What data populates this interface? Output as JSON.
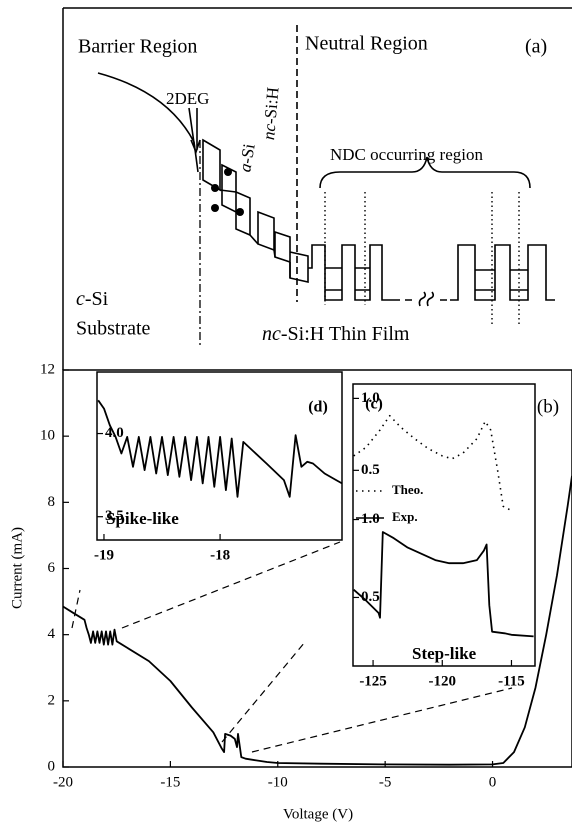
{
  "diagram": {
    "panel_label": "(a)",
    "barrier_region": "Barrier Region",
    "neutral_region": "Neutral Region",
    "twodeg": "2DEG",
    "a_si": {
      "prefix": "a",
      "rest": "-Si"
    },
    "nc_si_h": {
      "prefix": "nc",
      "rest": "-Si:H"
    },
    "ndc_region": "NDC occurring region",
    "c_si": {
      "prefix": "c",
      "rest": "-Si"
    },
    "substrate": "Substrate",
    "thin_film": {
      "prefix": "nc",
      "rest": "-Si:H Thin Film"
    }
  },
  "chart_data": [
    {
      "type": "line",
      "panel_label": "(b)",
      "x_label": "Voltage (V)",
      "y_label": "Current (mA)",
      "color": "#000000",
      "x": [
        -20,
        -19.5,
        -19,
        -18.9,
        -18.8,
        -18.7,
        -18.6,
        -18.5,
        -18.4,
        -18.3,
        -18.2,
        -18.1,
        -18,
        -17.9,
        -17.8,
        -17.7,
        -17.6,
        -17.5,
        -17,
        -16,
        -15,
        -14,
        -13,
        -12.6,
        -12.5,
        -12.45,
        -12.2,
        -12,
        -11.9,
        -11.85,
        -11.7,
        -11.5,
        -11,
        -10.5,
        -10,
        -8,
        -5,
        -2,
        0,
        0.5,
        1,
        1.5,
        2,
        2.5,
        3,
        3.5,
        3.7
      ],
      "values": [
        4.85,
        4.65,
        4.45,
        4.2,
        4.0,
        3.75,
        4.1,
        3.75,
        4.1,
        3.75,
        4.1,
        3.7,
        4.1,
        3.7,
        4.1,
        3.7,
        4.15,
        3.8,
        3.6,
        3.2,
        2.6,
        1.8,
        1.05,
        0.55,
        0.45,
        1.0,
        0.95,
        0.85,
        0.6,
        1.0,
        0.3,
        0.25,
        0.2,
        0.15,
        0.12,
        0.1,
        0.08,
        0.07,
        0.08,
        0.12,
        0.45,
        1.2,
        2.4,
        4.0,
        5.8,
        7.9,
        8.8
      ],
      "xlim": [
        -20,
        3.7
      ],
      "xticks": [
        -20,
        -15,
        -10,
        -5,
        0
      ],
      "ylim": [
        0,
        12
      ],
      "yticks": [
        0,
        2,
        4,
        6,
        8,
        10,
        12
      ]
    },
    {
      "type": "line",
      "panel_label": "(d)",
      "annotation": "Spike-like",
      "color": "#000000",
      "x": [
        -19.05,
        -19,
        -18.95,
        -18.9,
        -18.85,
        -18.8,
        -18.75,
        -18.7,
        -18.65,
        -18.6,
        -18.55,
        -18.5,
        -18.45,
        -18.4,
        -18.35,
        -18.3,
        -18.25,
        -18.2,
        -18.15,
        -18.1,
        -18.05,
        -18,
        -17.95,
        -17.9,
        -17.85,
        -17.8,
        -17.6,
        -17.45,
        -17.4,
        -17.35,
        -17.3,
        -17.25,
        -17.2,
        -17.1,
        -17,
        -16.95
      ],
      "values": [
        4.2,
        4.15,
        4.05,
        3.98,
        3.88,
        3.98,
        3.8,
        3.98,
        3.78,
        3.98,
        3.76,
        3.98,
        3.75,
        3.98,
        3.74,
        3.98,
        3.72,
        3.98,
        3.7,
        3.98,
        3.68,
        3.98,
        3.66,
        3.97,
        3.62,
        3.95,
        3.82,
        3.72,
        3.62,
        3.99,
        3.8,
        3.83,
        3.82,
        3.76,
        3.72,
        3.7
      ],
      "xlim": [
        -19.06,
        -16.95
      ],
      "xticks": [
        -19,
        -18
      ],
      "ylim": [
        3.36,
        4.37
      ],
      "yticks": [
        3.5,
        {
          "value": 4,
          "label": "4.0"
        }
      ]
    },
    {
      "type": "line",
      "panel_label": "(c)",
      "annotation": "Step-like",
      "legend": "left",
      "series": [
        {
          "name": "Theo.",
          "color": "#000000",
          "line_style": "dotted",
          "x": [
            -126.4,
            -125.5,
            -124.5,
            -123.8,
            -123,
            -122,
            -121,
            -120,
            -119.3,
            -118.5,
            -117.5,
            -116.9,
            -116.5,
            -116,
            -115.6,
            -115
          ],
          "values": [
            0.6,
            0.66,
            0.78,
            0.88,
            0.8,
            0.72,
            0.65,
            0.6,
            0.58,
            0.62,
            0.72,
            0.84,
            0.78,
            0.5,
            0.25,
            0.22
          ]
        },
        {
          "name": "Exp.",
          "color": "#000000",
          "line_style": "solid",
          "axis": "y2",
          "x": [
            -126.4,
            -125.5,
            -124.6,
            -124.5,
            -124.3,
            -123.5,
            -122.5,
            -121.5,
            -120.5,
            -119.5,
            -118.5,
            -117.5,
            -117,
            -116.8,
            -116.6,
            -116.4,
            -115.5,
            -115,
            -113.4
          ],
          "values": [
            0.55,
            0.48,
            0.4,
            0.37,
            0.92,
            0.88,
            0.82,
            0.78,
            0.74,
            0.72,
            0.72,
            0.74,
            0.8,
            0.84,
            0.45,
            0.28,
            0.27,
            0.26,
            0.25
          ]
        }
      ],
      "xlim": [
        -126.45,
        -113.3
      ],
      "xticks": [
        -125,
        -120,
        -115
      ],
      "ylim": [
        -0.86,
        1.1
      ],
      "yticks": [
        0.5,
        {
          "value": 1,
          "label": "1.0"
        }
      ],
      "y2lim": [
        0.06,
        1.87
      ],
      "y2ticks": [
        0.5,
        {
          "value": 1,
          "label": "1.0"
        }
      ]
    }
  ]
}
